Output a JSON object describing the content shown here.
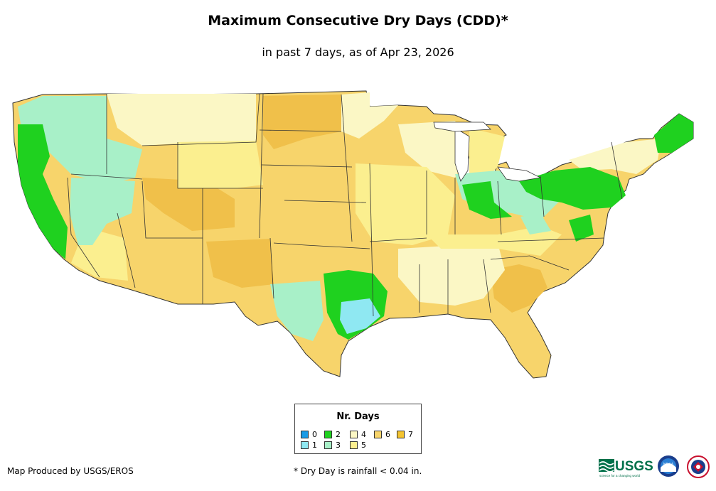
{
  "header": {
    "title": "Maximum Consecutive Dry Days (CDD)*",
    "subtitle": "in past 7 days, as of Apr 23, 2026"
  },
  "legend": {
    "title": "Nr. Days",
    "items": [
      {
        "label": "0",
        "color": "#1a9be6"
      },
      {
        "label": "1",
        "color": "#8fe8f2"
      },
      {
        "label": "2",
        "color": "#1fd11f"
      },
      {
        "label": "3",
        "color": "#a8f0c8"
      },
      {
        "label": "4",
        "color": "#fbf7c5"
      },
      {
        "label": "5",
        "color": "#fbef8f"
      },
      {
        "label": "6",
        "color": "#f7d46b"
      },
      {
        "label": "7",
        "color": "#f4c430"
      }
    ]
  },
  "footer": {
    "credit": "Map Produced by USGS/EROS",
    "footnote": "* Dry Day is rainfall < 0.04 in.",
    "logos": {
      "usgs_text": "USGS",
      "usgs_tagline": "science for a changing world",
      "noaa_text": "NOAA"
    }
  },
  "colors": {
    "state_border": "#333333",
    "background": "#ffffff"
  }
}
